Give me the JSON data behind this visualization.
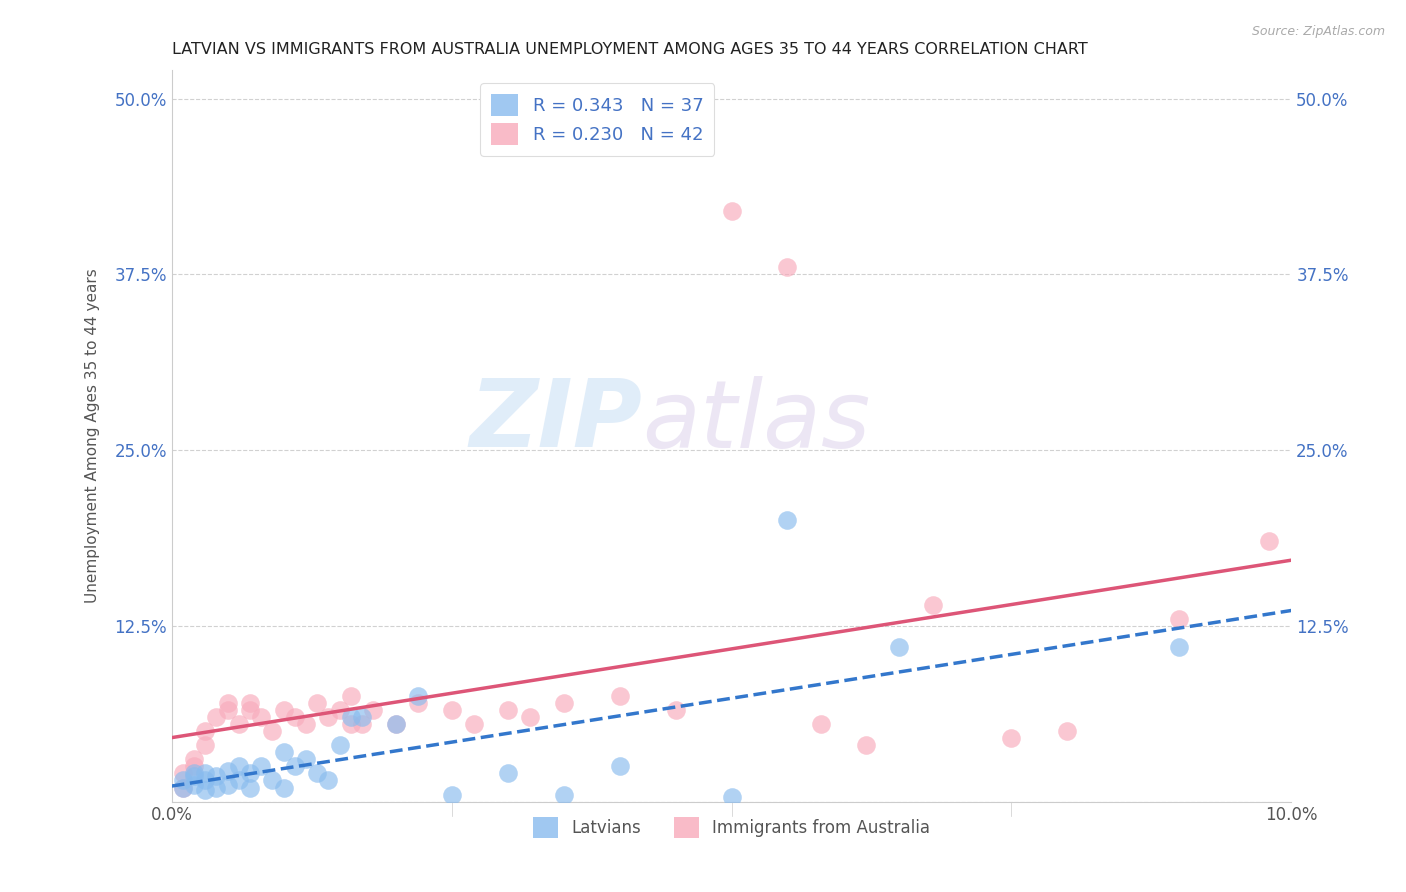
{
  "title": "LATVIAN VS IMMIGRANTS FROM AUSTRALIA UNEMPLOYMENT AMONG AGES 35 TO 44 YEARS CORRELATION CHART",
  "source": "Source: ZipAtlas.com",
  "ylabel": "Unemployment Among Ages 35 to 44 years",
  "xlim": [
    0.0,
    0.1
  ],
  "ylim": [
    0.0,
    0.52
  ],
  "xticks": [
    0.0,
    0.025,
    0.05,
    0.075,
    0.1
  ],
  "xtick_labels": [
    "0.0%",
    "",
    "",
    "",
    "10.0%"
  ],
  "ytick_positions": [
    0.0,
    0.125,
    0.25,
    0.375,
    0.5
  ],
  "ytick_labels": [
    "",
    "12.5%",
    "25.0%",
    "37.5%",
    "50.0%"
  ],
  "grid_color": "#cccccc",
  "background_color": "#ffffff",
  "latvian_color": "#88bbee",
  "australia_color": "#f8aabb",
  "latvian_line_color": "#3377cc",
  "australia_line_color": "#dd5577",
  "latvian_R": 0.343,
  "latvian_N": 37,
  "australia_R": 0.23,
  "australia_N": 42,
  "legend_label_latvian": "Latvians",
  "legend_label_australia": "Immigrants from Australia",
  "watermark_zip": "ZIP",
  "watermark_atlas": "atlas",
  "latvian_x": [
    0.001,
    0.001,
    0.002,
    0.002,
    0.002,
    0.003,
    0.003,
    0.003,
    0.004,
    0.004,
    0.005,
    0.005,
    0.006,
    0.006,
    0.007,
    0.007,
    0.008,
    0.009,
    0.01,
    0.01,
    0.011,
    0.012,
    0.013,
    0.014,
    0.015,
    0.016,
    0.017,
    0.02,
    0.022,
    0.025,
    0.03,
    0.035,
    0.04,
    0.05,
    0.055,
    0.065,
    0.09
  ],
  "latvian_y": [
    0.01,
    0.015,
    0.012,
    0.018,
    0.02,
    0.008,
    0.015,
    0.02,
    0.01,
    0.018,
    0.012,
    0.022,
    0.025,
    0.015,
    0.02,
    0.01,
    0.025,
    0.015,
    0.035,
    0.01,
    0.025,
    0.03,
    0.02,
    0.015,
    0.04,
    0.06,
    0.06,
    0.055,
    0.075,
    0.005,
    0.02,
    0.005,
    0.025,
    0.003,
    0.2,
    0.11,
    0.11
  ],
  "australia_x": [
    0.001,
    0.001,
    0.002,
    0.002,
    0.003,
    0.003,
    0.004,
    0.005,
    0.005,
    0.006,
    0.007,
    0.007,
    0.008,
    0.009,
    0.01,
    0.011,
    0.012,
    0.013,
    0.014,
    0.015,
    0.016,
    0.016,
    0.017,
    0.018,
    0.02,
    0.022,
    0.025,
    0.027,
    0.03,
    0.032,
    0.035,
    0.04,
    0.045,
    0.05,
    0.055,
    0.058,
    0.062,
    0.068,
    0.075,
    0.08,
    0.09,
    0.098
  ],
  "australia_y": [
    0.01,
    0.02,
    0.025,
    0.03,
    0.04,
    0.05,
    0.06,
    0.065,
    0.07,
    0.055,
    0.065,
    0.07,
    0.06,
    0.05,
    0.065,
    0.06,
    0.055,
    0.07,
    0.06,
    0.065,
    0.055,
    0.075,
    0.055,
    0.065,
    0.055,
    0.07,
    0.065,
    0.055,
    0.065,
    0.06,
    0.07,
    0.075,
    0.065,
    0.42,
    0.38,
    0.055,
    0.04,
    0.14,
    0.045,
    0.05,
    0.13,
    0.185
  ]
}
